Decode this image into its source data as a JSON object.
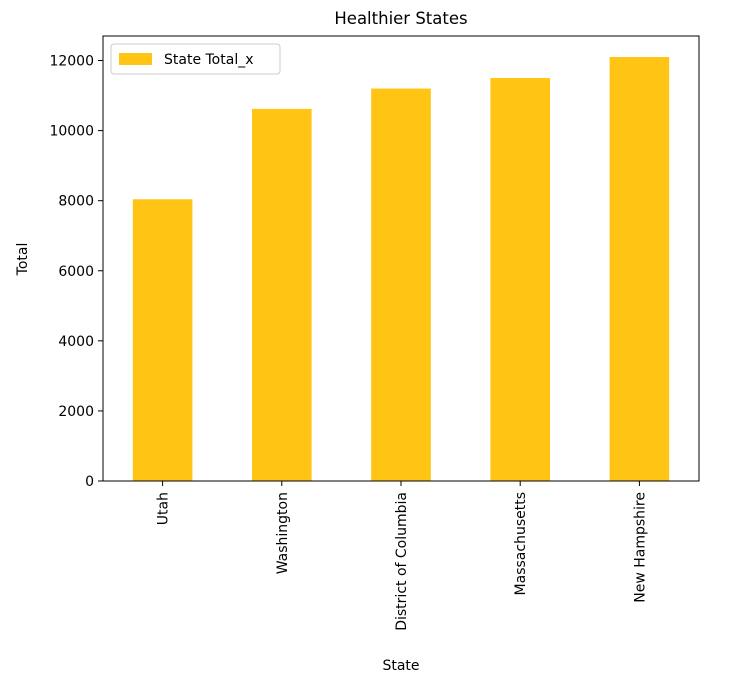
{
  "chart_data": {
    "type": "bar",
    "title": "Healthier States",
    "xlabel": "State",
    "ylabel": "Total",
    "categories": [
      "Utah",
      "Washington",
      "District of Columbia",
      "Massachusetts",
      "New Hampshire"
    ],
    "series": [
      {
        "name": "State Total_x",
        "values": [
          8040,
          10620,
          11200,
          11500,
          12100
        ],
        "color": "#ffc414"
      }
    ],
    "ylim": [
      0,
      12700
    ],
    "yticks": [
      0,
      2000,
      4000,
      6000,
      8000,
      10000,
      12000
    ],
    "ytick_labels": [
      "0",
      "2000",
      "4000",
      "6000",
      "8000",
      "10000",
      "12000"
    ],
    "grid": false,
    "legend_position": "top-left"
  }
}
